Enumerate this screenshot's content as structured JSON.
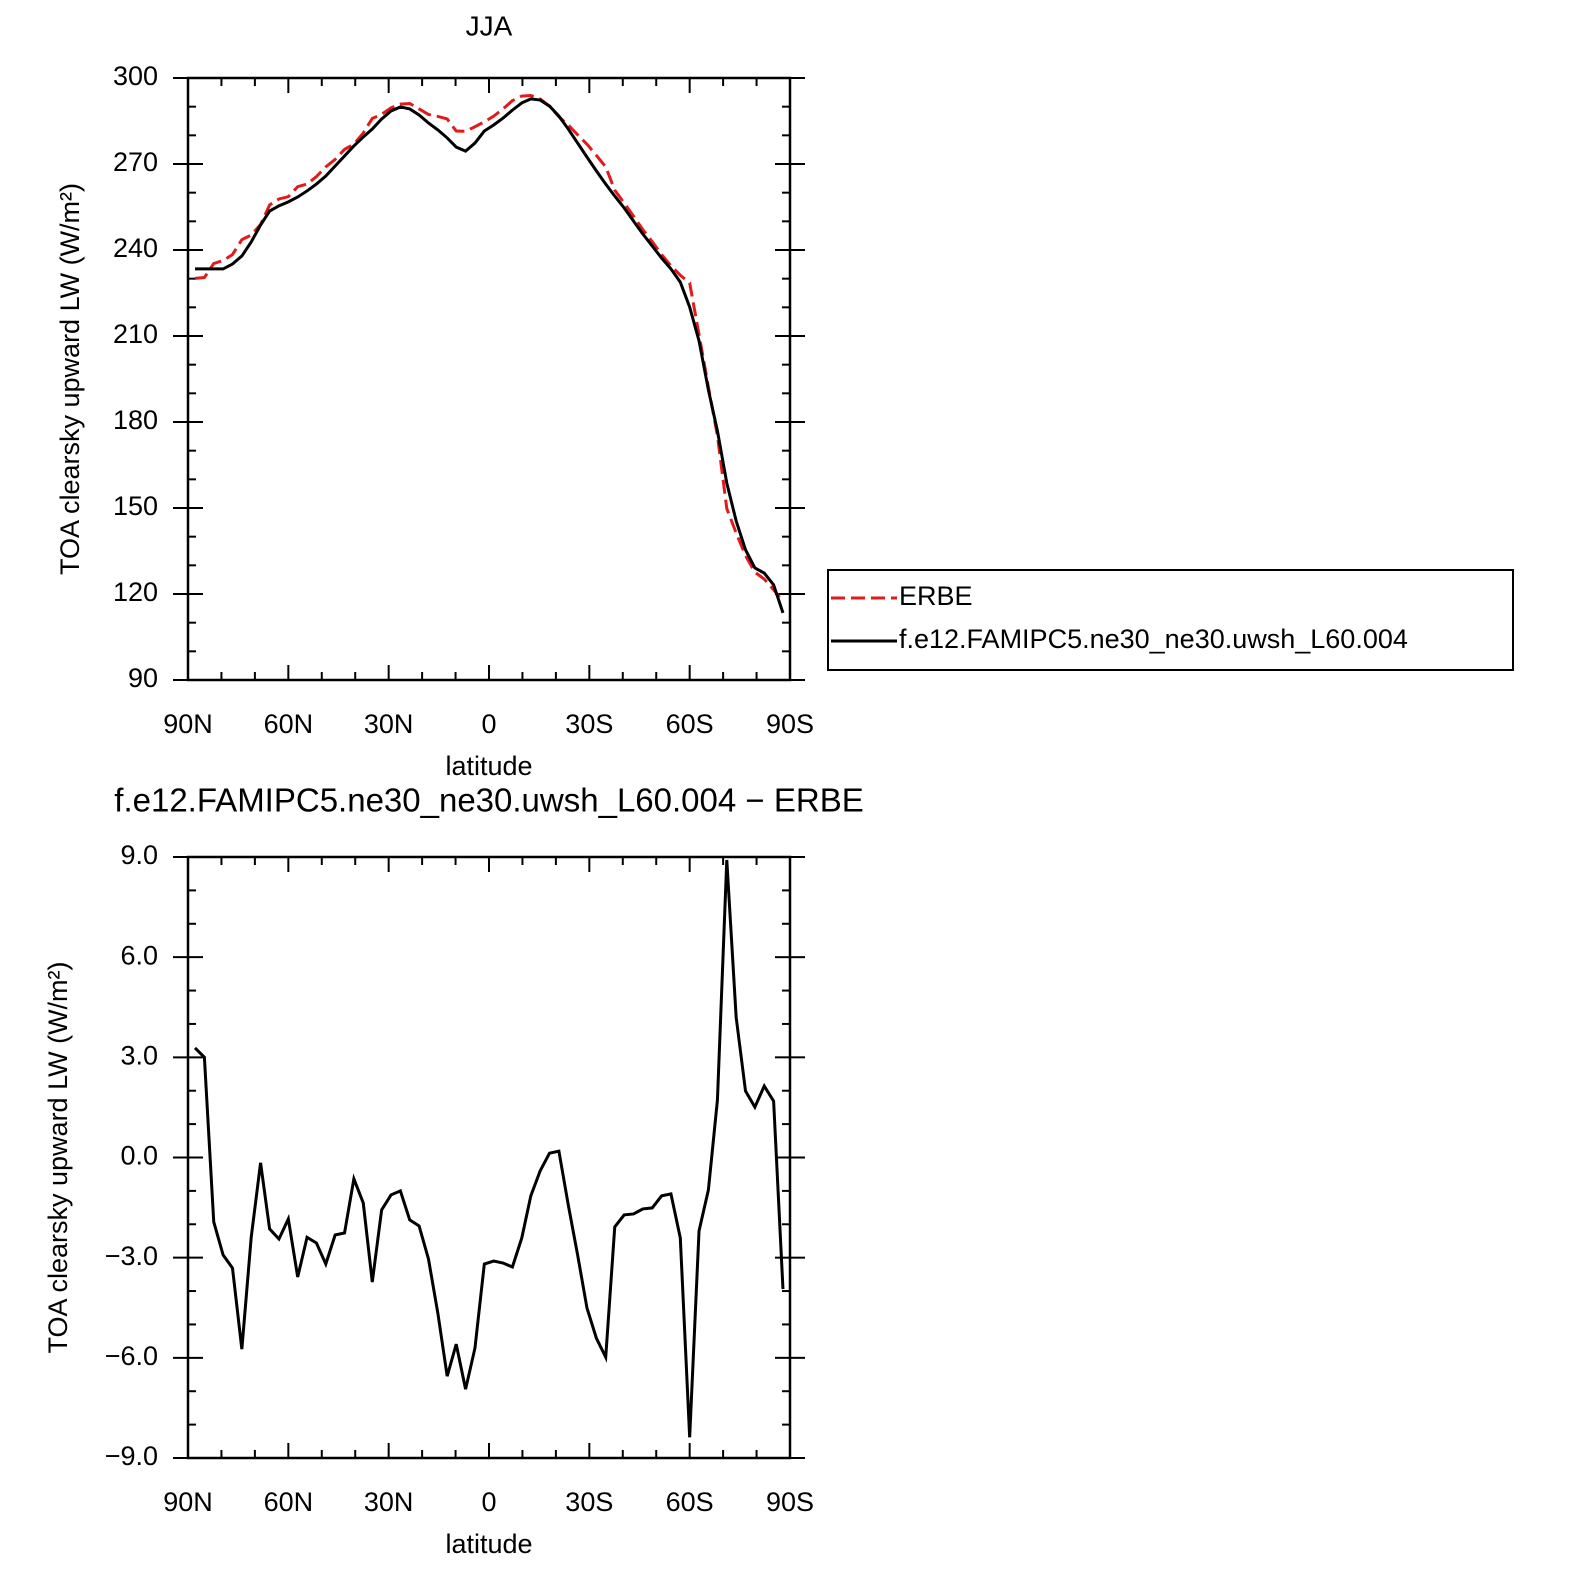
{
  "chart_data": [
    {
      "type": "line",
      "title": "JJA",
      "xlabel": "latitude",
      "ylabel": "TOA clearsky upward LW (W/m²)",
      "x": [
        87.9,
        85.1,
        82.3,
        79.5,
        76.7,
        73.9,
        71.1,
        68.3,
        65.6,
        62.8,
        60.0,
        57.2,
        54.4,
        51.6,
        48.8,
        46.0,
        43.2,
        40.4,
        37.6,
        34.9,
        32.1,
        29.3,
        26.5,
        23.7,
        20.9,
        18.1,
        15.3,
        12.5,
        9.8,
        7.0,
        4.2,
        1.4,
        -1.4,
        -4.2,
        -7.0,
        -9.8,
        -12.5,
        -15.3,
        -18.1,
        -20.9,
        -23.7,
        -26.5,
        -29.3,
        -32.1,
        -34.9,
        -37.6,
        -40.4,
        -43.2,
        -46.0,
        -48.8,
        -51.6,
        -54.4,
        -57.2,
        -60.0,
        -62.8,
        -65.6,
        -68.3,
        -71.1,
        -73.9,
        -76.7,
        -79.5,
        -82.3,
        -85.1,
        -87.9
      ],
      "series": [
        {
          "name": "ERBE",
          "color": "#e31a1c",
          "dash": true,
          "values": [
            230.1,
            230.4,
            235.3,
            236.3,
            238.4,
            243.6,
            245.2,
            248.9,
            255.7,
            257.8,
            258.6,
            262.1,
            263.0,
            265.6,
            269.0,
            271.6,
            275.1,
            276.9,
            280.8,
            285.9,
            287.3,
            289.6,
            290.9,
            291.1,
            289.2,
            287.3,
            286.6,
            285.7,
            281.5,
            281.4,
            283.0,
            284.7,
            286.7,
            289.2,
            292.1,
            293.7,
            293.9,
            292.7,
            290.1,
            286.5,
            283.6,
            280.2,
            276.9,
            273.0,
            269.0,
            260.9,
            256.4,
            251.8,
            247.1,
            242.9,
            238.4,
            234.5,
            231.2,
            228.5,
            210.5,
            192.2,
            175.2,
            149.8,
            141.3,
            133.4,
            127.6,
            125.2,
            121.5,
            117.3
          ]
        },
        {
          "name": "f.e12.FAMIPC5.ne30_ne30.uwsh_L60.004",
          "color": "#000000",
          "dash": false,
          "values": [
            233.4,
            233.4,
            233.4,
            233.4,
            235.1,
            237.9,
            242.8,
            248.7,
            253.6,
            255.4,
            256.8,
            258.5,
            260.6,
            263.0,
            265.8,
            269.3,
            272.8,
            276.3,
            279.4,
            282.2,
            285.7,
            288.5,
            289.9,
            289.2,
            287.1,
            284.3,
            281.9,
            279.1,
            275.9,
            274.5,
            277.3,
            281.5,
            283.6,
            286.0,
            288.8,
            291.3,
            292.7,
            292.3,
            290.2,
            286.7,
            282.2,
            277.3,
            272.4,
            267.6,
            263.0,
            258.8,
            254.7,
            250.1,
            245.6,
            241.4,
            237.2,
            233.4,
            228.8,
            220.1,
            208.3,
            191.2,
            176.9,
            158.7,
            145.5,
            135.4,
            129.1,
            127.3,
            123.2,
            113.4
          ]
        }
      ],
      "xlim": [
        90,
        -90
      ],
      "xticks": [
        {
          "value": 90,
          "label": "90N"
        },
        {
          "value": 60,
          "label": "60N"
        },
        {
          "value": 30,
          "label": "30N"
        },
        0,
        {
          "value": -30,
          "label": "30S"
        },
        {
          "value": -60,
          "label": "60S"
        },
        {
          "value": -90,
          "label": "90S"
        }
      ],
      "ylim": [
        90,
        300
      ],
      "yticks": [
        90,
        120,
        150,
        180,
        210,
        240,
        270,
        300
      ],
      "legend": true
    },
    {
      "type": "line",
      "title": "f.e12.FAMIPC5.ne30_ne30.uwsh_L60.004 − ERBE",
      "xlabel": "latitude",
      "ylabel": "TOA clearsky upward LW (W/m²)",
      "x": [
        87.9,
        85.1,
        82.3,
        79.5,
        76.7,
        73.9,
        71.1,
        68.3,
        65.6,
        62.8,
        60.0,
        57.2,
        54.4,
        51.6,
        48.8,
        46.0,
        43.2,
        40.4,
        37.6,
        34.9,
        32.1,
        29.3,
        26.5,
        23.7,
        20.9,
        18.1,
        15.3,
        12.5,
        9.8,
        7.0,
        4.2,
        1.4,
        -1.4,
        -4.2,
        -7.0,
        -9.8,
        -12.5,
        -15.3,
        -18.1,
        -20.9,
        -23.7,
        -26.5,
        -29.3,
        -32.1,
        -34.9,
        -37.6,
        -40.4,
        -43.2,
        -46.0,
        -48.8,
        -51.6,
        -54.4,
        -57.2,
        -60.0,
        -62.8,
        -65.6,
        -68.3,
        -71.1,
        -73.9,
        -76.7,
        -79.5,
        -82.3,
        -85.1,
        -87.9
      ],
      "values": [
        3.28,
        3.0,
        -1.93,
        -2.92,
        -3.31,
        -5.74,
        -2.39,
        -0.16,
        -2.14,
        -2.44,
        -1.84,
        -3.58,
        -2.39,
        -2.56,
        -3.19,
        -2.32,
        -2.26,
        -0.64,
        -1.36,
        -3.73,
        -1.57,
        -1.12,
        -1.0,
        -1.87,
        -2.05,
        -3.04,
        -4.66,
        -6.55,
        -5.59,
        -6.94,
        -5.71,
        -3.19,
        -3.1,
        -3.16,
        -3.28,
        -2.41,
        -1.15,
        -0.4,
        0.13,
        0.19,
        -1.42,
        -2.92,
        -4.51,
        -5.41,
        -5.98,
        -2.08,
        -1.72,
        -1.69,
        -1.54,
        -1.51,
        -1.15,
        -1.09,
        -2.41,
        -8.38,
        -2.2,
        -0.97,
        1.72,
        8.91,
        4.2,
        1.99,
        1.51,
        2.14,
        1.69,
        -3.94
      ],
      "color": "#000000",
      "xlim": [
        90,
        -90
      ],
      "xticks": [
        {
          "value": 90,
          "label": "90N"
        },
        {
          "value": 60,
          "label": "60N"
        },
        {
          "value": 30,
          "label": "30N"
        },
        0,
        {
          "value": -30,
          "label": "30S"
        },
        {
          "value": -60,
          "label": "60S"
        },
        {
          "value": -90,
          "label": "90S"
        }
      ],
      "ylim": [
        -9,
        9
      ],
      "yticks": [
        {
          "value": -9,
          "label": "−9.0"
        },
        {
          "value": -6,
          "label": "−6.0"
        },
        {
          "value": -3,
          "label": "−3.0"
        },
        {
          "value": 0,
          "label": "0.0"
        },
        {
          "value": 3,
          "label": "3.0"
        },
        {
          "value": 6,
          "label": "6.0"
        },
        {
          "value": 9,
          "label": "9.0"
        }
      ]
    }
  ]
}
